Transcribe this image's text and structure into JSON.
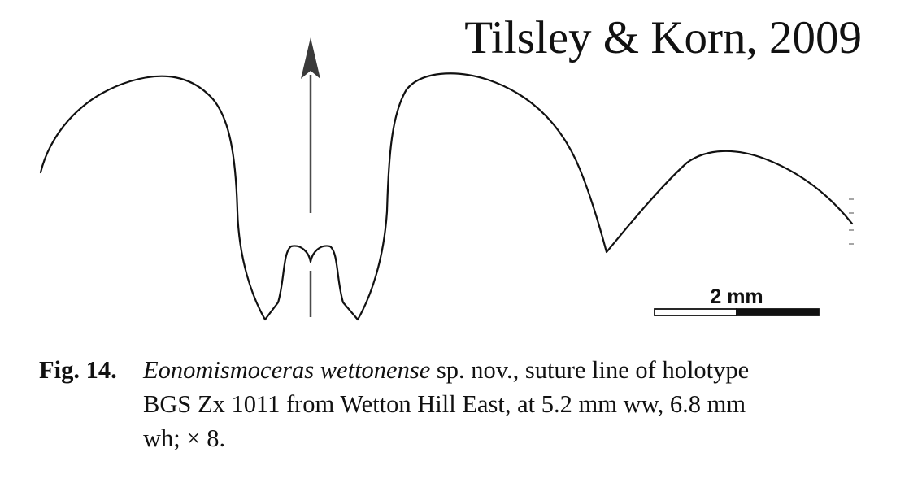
{
  "attribution": "Tilsley & Korn, 2009",
  "scale_bar": {
    "label": "2 mm"
  },
  "caption": {
    "label": "Fig. 14.",
    "species": "Eonomismoceras wettonense",
    "line1_rest": " sp. nov., suture line of holotype",
    "line2": "BGS Zx 1011 from Wetton Hill East, at 5.2 mm ww, 6.8 mm",
    "line3": "wh; × 8."
  },
  "colors": {
    "line": "#111111",
    "arrow": "#4a4a4a",
    "background": "#ffffff"
  }
}
